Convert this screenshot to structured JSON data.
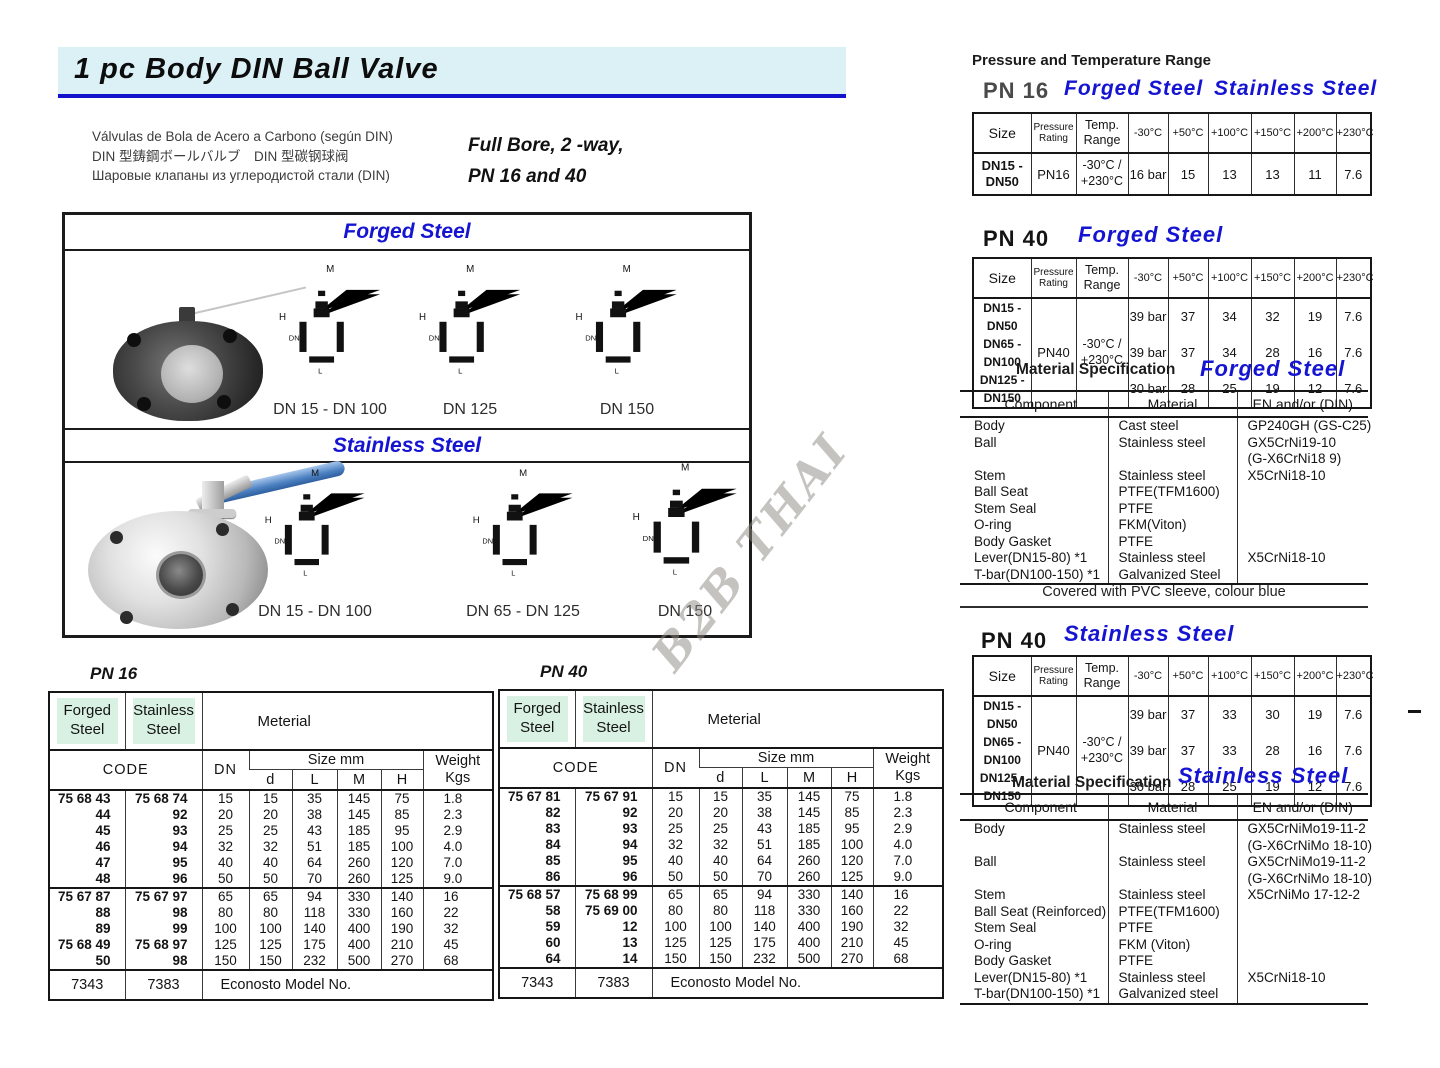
{
  "page": {
    "title": "1 pc Body DIN Ball Valve",
    "subtitle": [
      "Válvulas de Bola de Acero a Carbono (según DIN)",
      "DIN 型鋳鋼ボールバルブ　DIN 型碳钢球阀",
      "Шаровые клапаны из углеродистой стали (DIN)"
    ],
    "bore": "Full Bore, 2 -way,\nPN 16 and 40",
    "watermark": "B2B THAI"
  },
  "drawings": {
    "forged_title": "Forged Steel",
    "stainless_title": "Stainless Steel",
    "dims": {
      "m": "M",
      "h": "H",
      "dn": "DN",
      "l": "L"
    },
    "forged_captions": [
      "DN 15 - DN 100",
      "DN 125",
      "DN 150"
    ],
    "stainless_captions": [
      "DN 15 - DN 100",
      "DN 65 - DN 125",
      "DN 150"
    ]
  },
  "size_labels": {
    "forged": "Forged\nSteel",
    "stainless": "Stainless\nSteel",
    "material": "Meterial",
    "code": "CODE",
    "dn": "DN",
    "size_mm": "Size mm",
    "d": "d",
    "l": "L",
    "m": "M",
    "h": "H",
    "weight": "Weight\nKgs",
    "econosto": "Econosto Model No."
  },
  "pn16": {
    "title": "PN 16",
    "model_forged": "7343",
    "model_stainless": "7383",
    "rows": [
      {
        "cf": "75 68 43",
        "cs": "75 68 74",
        "dn": "15",
        "d": "15",
        "l": "35",
        "m": "145",
        "h": "75",
        "w": "1.8"
      },
      {
        "cf": "44",
        "cs": "92",
        "dn": "20",
        "d": "20",
        "l": "38",
        "m": "145",
        "h": "85",
        "w": "2.3"
      },
      {
        "cf": "45",
        "cs": "93",
        "dn": "25",
        "d": "25",
        "l": "43",
        "m": "185",
        "h": "95",
        "w": "2.9"
      },
      {
        "cf": "46",
        "cs": "94",
        "dn": "32",
        "d": "32",
        "l": "51",
        "m": "185",
        "h": "100",
        "w": "4.0"
      },
      {
        "cf": "47",
        "cs": "95",
        "dn": "40",
        "d": "40",
        "l": "64",
        "m": "260",
        "h": "120",
        "w": "7.0"
      },
      {
        "cf": "48",
        "cs": "96",
        "dn": "50",
        "d": "50",
        "l": "70",
        "m": "260",
        "h": "125",
        "w": "9.0"
      },
      {
        "cf": "75 67 87",
        "cs": "75 67 97",
        "dn": "65",
        "d": "65",
        "l": "94",
        "m": "330",
        "h": "140",
        "w": "16",
        "_sep": true
      },
      {
        "cf": "88",
        "cs": "98",
        "dn": "80",
        "d": "80",
        "l": "118",
        "m": "330",
        "h": "160",
        "w": "22"
      },
      {
        "cf": "89",
        "cs": "99",
        "dn": "100",
        "d": "100",
        "l": "140",
        "m": "400",
        "h": "190",
        "w": "32"
      },
      {
        "cf": "75 68 49",
        "cs": "75 68 97",
        "dn": "125",
        "d": "125",
        "l": "175",
        "m": "400",
        "h": "210",
        "w": "45"
      },
      {
        "cf": "50",
        "cs": "98",
        "dn": "150",
        "d": "150",
        "l": "232",
        "m": "500",
        "h": "270",
        "w": "68"
      }
    ]
  },
  "pn40": {
    "title": "PN 40",
    "model_forged": "7343",
    "model_stainless": "7383",
    "rows": [
      {
        "cf": "75 67 81",
        "cs": "75 67 91",
        "dn": "15",
        "d": "15",
        "l": "35",
        "m": "145",
        "h": "75",
        "w": "1.8"
      },
      {
        "cf": "82",
        "cs": "92",
        "dn": "20",
        "d": "20",
        "l": "38",
        "m": "145",
        "h": "85",
        "w": "2.3"
      },
      {
        "cf": "83",
        "cs": "93",
        "dn": "25",
        "d": "25",
        "l": "43",
        "m": "185",
        "h": "95",
        "w": "2.9"
      },
      {
        "cf": "84",
        "cs": "94",
        "dn": "32",
        "d": "32",
        "l": "51",
        "m": "185",
        "h": "100",
        "w": "4.0"
      },
      {
        "cf": "85",
        "cs": "95",
        "dn": "40",
        "d": "40",
        "l": "64",
        "m": "260",
        "h": "120",
        "w": "7.0"
      },
      {
        "cf": "86",
        "cs": "96",
        "dn": "50",
        "d": "50",
        "l": "70",
        "m": "260",
        "h": "125",
        "w": "9.0"
      },
      {
        "cf": "75 68 57",
        "cs": "75 68 99",
        "dn": "65",
        "d": "65",
        "l": "94",
        "m": "330",
        "h": "140",
        "w": "16",
        "_sep": true
      },
      {
        "cf": "58",
        "cs": "75 69 00",
        "dn": "80",
        "d": "80",
        "l": "118",
        "m": "330",
        "h": "160",
        "w": "22"
      },
      {
        "cf": "59",
        "cs": "12",
        "dn": "100",
        "d": "100",
        "l": "140",
        "m": "400",
        "h": "190",
        "w": "32"
      },
      {
        "cf": "60",
        "cs": "13",
        "dn": "125",
        "d": "125",
        "l": "175",
        "m": "400",
        "h": "210",
        "w": "45"
      },
      {
        "cf": "64",
        "cs": "14",
        "dn": "150",
        "d": "150",
        "l": "232",
        "m": "500",
        "h": "270",
        "w": "68"
      }
    ]
  },
  "pt": {
    "heading": "Pressure and Temperature Range",
    "labels": {
      "size": "Size",
      "rating": "Pressure\nRating",
      "range": "Temp.\nRange",
      "temps": [
        "-30°C",
        "+50°C",
        "+100°C",
        "+150°C",
        "+200°C",
        "+230°C"
      ]
    },
    "pt16": {
      "pn": "PN 16",
      "forged": "Forged Steel",
      "stainless": "Stainless Steel",
      "row": {
        "size": "DN15 -\nDN50",
        "rating": "PN16",
        "range": "-30°C /\n+230°C",
        "v": [
          "16 bar",
          "15",
          "13",
          "13",
          "11",
          "7.6"
        ]
      }
    },
    "pt40f": {
      "pn": "PN 40",
      "label": "Forged Steel",
      "rating": "PN40",
      "range": "-30°C /\n+230°C",
      "rows": [
        {
          "size": "DN15 -DN50",
          "v0": "39 bar",
          "v1": "37",
          "v2": "34",
          "v3": "32",
          "v4": "19",
          "v5": "7.6"
        },
        {
          "size": "DN65 -DN100",
          "v0": "39 bar",
          "v1": "37",
          "v2": "34",
          "v3": "28",
          "v4": "16",
          "v5": "7.6"
        },
        {
          "size": "DN125 -DN150",
          "v0": "30 bar",
          "v1": "28",
          "v2": "25",
          "v3": "19",
          "v4": "12",
          "v5": "7.6"
        }
      ]
    },
    "pt40s": {
      "pn": "PN 40",
      "label": "Stainless Steel",
      "rating": "PN40",
      "range": "-30°C /\n+230°C",
      "rows": [
        {
          "size": "DN15 -DN50",
          "v0": "39 bar",
          "v1": "37",
          "v2": "33",
          "v3": "30",
          "v4": "19",
          "v5": "7.6"
        },
        {
          "size": "DN65 -DN100",
          "v0": "39 bar",
          "v1": "37",
          "v2": "33",
          "v3": "28",
          "v4": "16",
          "v5": "7.6"
        },
        {
          "size": "DN125 -DN150",
          "v0": "30 bar",
          "v1": "28",
          "v2": "25",
          "v3": "19",
          "v4": "12",
          "v5": "7.6"
        }
      ]
    }
  },
  "matspec": {
    "heading": "Material Specification",
    "headers": {
      "component": "Component",
      "material": "Material",
      "en": "EN and/or (DIN)"
    },
    "forged": {
      "label": "Forged Steel",
      "note": "Covered with PVC sleeve, colour blue",
      "rows": [
        {
          "c": "Body",
          "m": "Cast steel",
          "e": "GP240GH (GS-C25)"
        },
        {
          "c": "Ball",
          "m": "Stainless steel",
          "e": "GX5CrNi19-10"
        },
        {
          "c": "",
          "m": "",
          "e": "(G-X6CrNi18 9)"
        },
        {
          "c": "Stem",
          "m": "Stainless steel",
          "e": "X5CrNi18-10"
        },
        {
          "c": "Ball Seat",
          "m": "PTFE(TFM1600)",
          "e": ""
        },
        {
          "c": "Stem Seal",
          "m": "PTFE",
          "e": ""
        },
        {
          "c": "O-ring",
          "m": "FKM(Viton)",
          "e": ""
        },
        {
          "c": "Body Gasket",
          "m": "PTFE",
          "e": ""
        },
        {
          "c": "Lever(DN15-80) *1",
          "m": "Stainless steel",
          "e": "X5CrNi18-10"
        },
        {
          "c": "T-bar(DN100-150) *1",
          "m": "Galvanized Steel",
          "e": ""
        }
      ]
    },
    "stainless": {
      "label": "Stainless Steel",
      "rows": [
        {
          "c": "Body",
          "m": "Stainless steel",
          "e": "GX5CrNiMo19-11-2"
        },
        {
          "c": "",
          "m": "",
          "e": "(G-X6CrNiMo 18-10)"
        },
        {
          "c": "Ball",
          "m": "Stainless steel",
          "e": "GX5CrNiMo19-11-2"
        },
        {
          "c": "",
          "m": "",
          "e": "(G-X6CrNiMo 18-10)"
        },
        {
          "c": "Stem",
          "m": "Stainless steel",
          "e": "X5CrNiMo 17-12-2"
        },
        {
          "c": "Ball Seat (Reinforced)",
          "m": "PTFE(TFM1600)",
          "e": ""
        },
        {
          "c": "Stem Seal",
          "m": "PTFE",
          "e": ""
        },
        {
          "c": "O-ring",
          "m": "FKM (Viton)",
          "e": ""
        },
        {
          "c": "Body Gasket",
          "m": "PTFE",
          "e": ""
        },
        {
          "c": "Lever(DN15-80) *1",
          "m": "Stainless steel",
          "e": "X5CrNi18-10"
        },
        {
          "c": "T-bar(DN100-150) *1",
          "m": "Galvanized steel",
          "e": ""
        }
      ]
    }
  }
}
